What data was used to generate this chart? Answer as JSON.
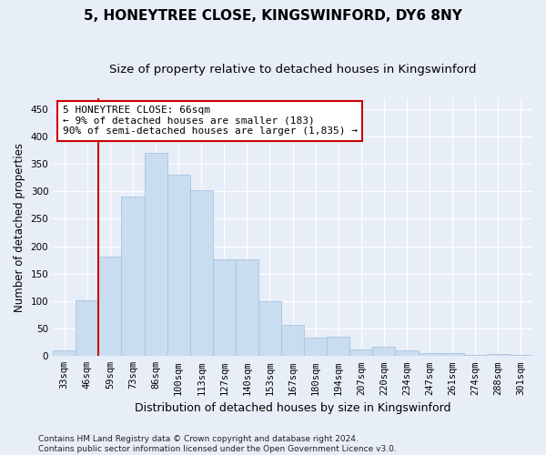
{
  "title": "5, HONEYTREE CLOSE, KINGSWINFORD, DY6 8NY",
  "subtitle": "Size of property relative to detached houses in Kingswinford",
  "xlabel": "Distribution of detached houses by size in Kingswinford",
  "ylabel": "Number of detached properties",
  "categories": [
    "33sqm",
    "46sqm",
    "59sqm",
    "73sqm",
    "86sqm",
    "100sqm",
    "113sqm",
    "127sqm",
    "140sqm",
    "153sqm",
    "167sqm",
    "180sqm",
    "194sqm",
    "207sqm",
    "220sqm",
    "234sqm",
    "247sqm",
    "261sqm",
    "274sqm",
    "288sqm",
    "301sqm"
  ],
  "values": [
    10,
    101,
    181,
    290,
    370,
    330,
    303,
    176,
    176,
    100,
    57,
    33,
    35,
    12,
    17,
    10,
    5,
    5,
    2,
    3,
    2
  ],
  "bar_color": "#c9ddf0",
  "bar_edge_color": "#a8c4e0",
  "vline_color": "#cc0000",
  "vline_x": 1.5,
  "annotation_text": "5 HONEYTREE CLOSE: 66sqm\n← 9% of detached houses are smaller (183)\n90% of semi-detached houses are larger (1,835) →",
  "annotation_box_facecolor": "#ffffff",
  "annotation_box_edgecolor": "#cc0000",
  "ylim": [
    0,
    470
  ],
  "yticks": [
    0,
    50,
    100,
    150,
    200,
    250,
    300,
    350,
    400,
    450
  ],
  "background_color": "#e8eef8",
  "grid_color": "#ffffff",
  "title_fontsize": 11,
  "subtitle_fontsize": 9.5,
  "xlabel_fontsize": 9,
  "ylabel_fontsize": 8.5,
  "tick_fontsize": 7.5,
  "annot_fontsize": 8,
  "footer_text": "Contains HM Land Registry data © Crown copyright and database right 2024.\nContains public sector information licensed under the Open Government Licence v3.0."
}
